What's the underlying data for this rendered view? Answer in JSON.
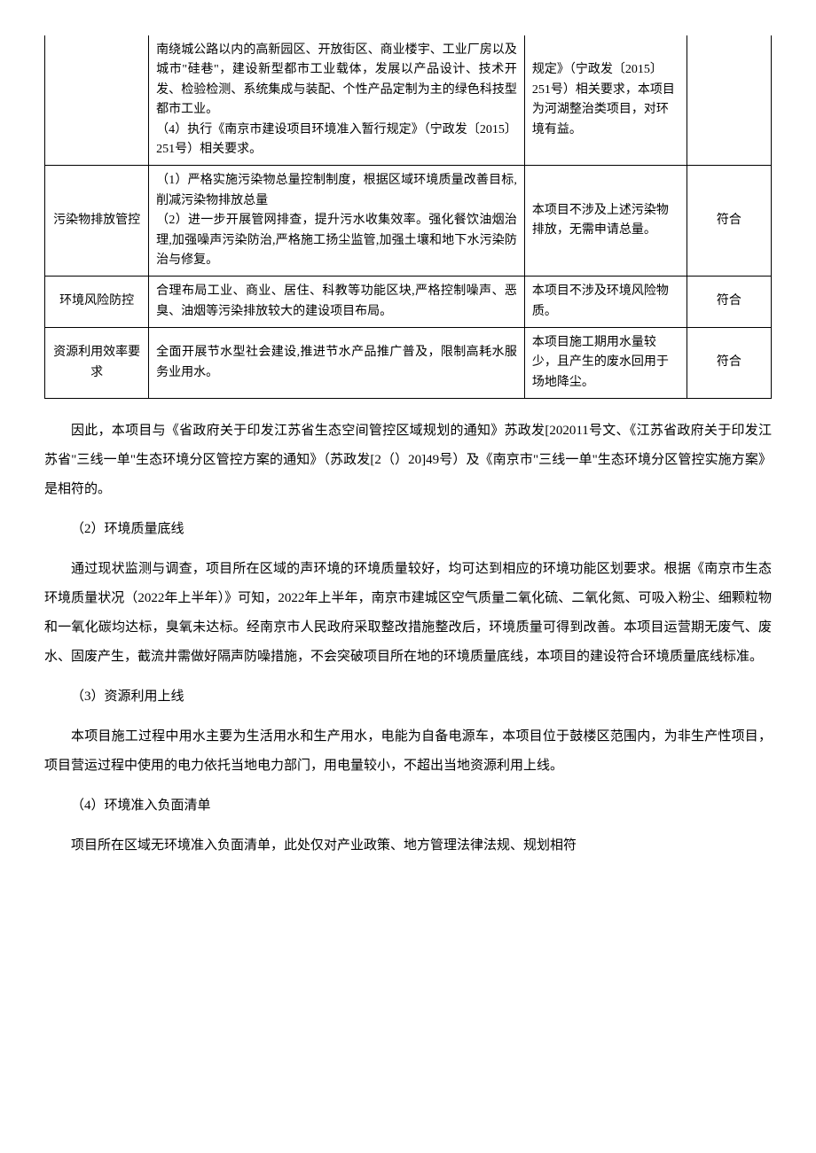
{
  "table": {
    "rows": [
      {
        "c1": "",
        "c2": "南绕城公路以内的高新园区、开放街区、商业楼宇、工业厂房以及城市\"硅巷\"，建设新型都市工业载体，发展以产品设计、技术开发、检验检测、系统集成与装配、个性产品定制为主的绿色科技型都市工业。\n（4）执行《南京市建设项目环境准入暂行规定》（宁政发〔2015〕251号）相关要求。",
        "c3": "规定》（宁政发〔2015〕251号）相关要求，本项目为河湖整治类项目，对环境有益。",
        "c4": ""
      },
      {
        "c1": "污染物排放管控",
        "c2": "（1）严格实施污染物总量控制制度，根据区域环境质量改善目标,削减污染物排放总量\n（2）进一步开展管网排查，提升污水收集效率。强化餐饮油烟治理,加强噪声污染防治,严格施工扬尘监管,加强土壤和地下水污染防治与修复。",
        "c3": "本项目不涉及上述污染物排放，无需申请总量。",
        "c4": "符合"
      },
      {
        "c1": "环境风险防控",
        "c2": "合理布局工业、商业、居住、科教等功能区块,严格控制噪声、恶臭、油烟等污染排放较大的建设项目布局。",
        "c3": "本项目不涉及环境风险物质。",
        "c4": "符合"
      },
      {
        "c1": "资源利用效率要求",
        "c2": "全面开展节水型社会建设,推进节水产品推广普及，限制高耗水服务业用水。",
        "c3": "本项目施工期用水量较少，且产生的废水回用于场地降尘。",
        "c4": "符合"
      }
    ]
  },
  "paragraphs": {
    "p1": "因此，本项目与《省政府关于印发江苏省生态空间管控区域规划的通知》苏政发[202011号文、《江苏省政府关于印发江苏省\"三线一单\"生态环境分区管控方案的通知》（苏政发[2（）20]49号）及《南京市\"三线一单\"生态环境分区管控实施方案》是相符的。",
    "h2": "（2）环境质量底线",
    "p2": "通过现状监测与调查，项目所在区域的声环境的环境质量较好，均可达到相应的环境功能区划要求。根据《南京市生态环境质量状况（2022年上半年）》可知，2022年上半年，南京市建城区空气质量二氧化硫、二氧化氮、可吸入粉尘、细颗粒物和一氧化碳均达标，臭氧未达标。经南京市人民政府采取整改措施整改后，环境质量可得到改善。本项目运营期无废气、废水、固废产生，截流井需做好隔声防噪措施，不会突破项目所在地的环境质量底线，本项目的建设符合环境质量底线标准。",
    "h3": "（3）资源利用上线",
    "p3": "本项目施工过程中用水主要为生活用水和生产用水，电能为自备电源车，本项目位于鼓楼区范围内，为非生产性项目，项目营运过程中使用的电力依托当地电力部门，用电量较小，不超出当地资源利用上线。",
    "h4": "（4）环境准入负面清单",
    "p4": "项目所在区域无环境准入负面清单，此处仅对产业政策、地方管理法律法规、规划相符"
  }
}
